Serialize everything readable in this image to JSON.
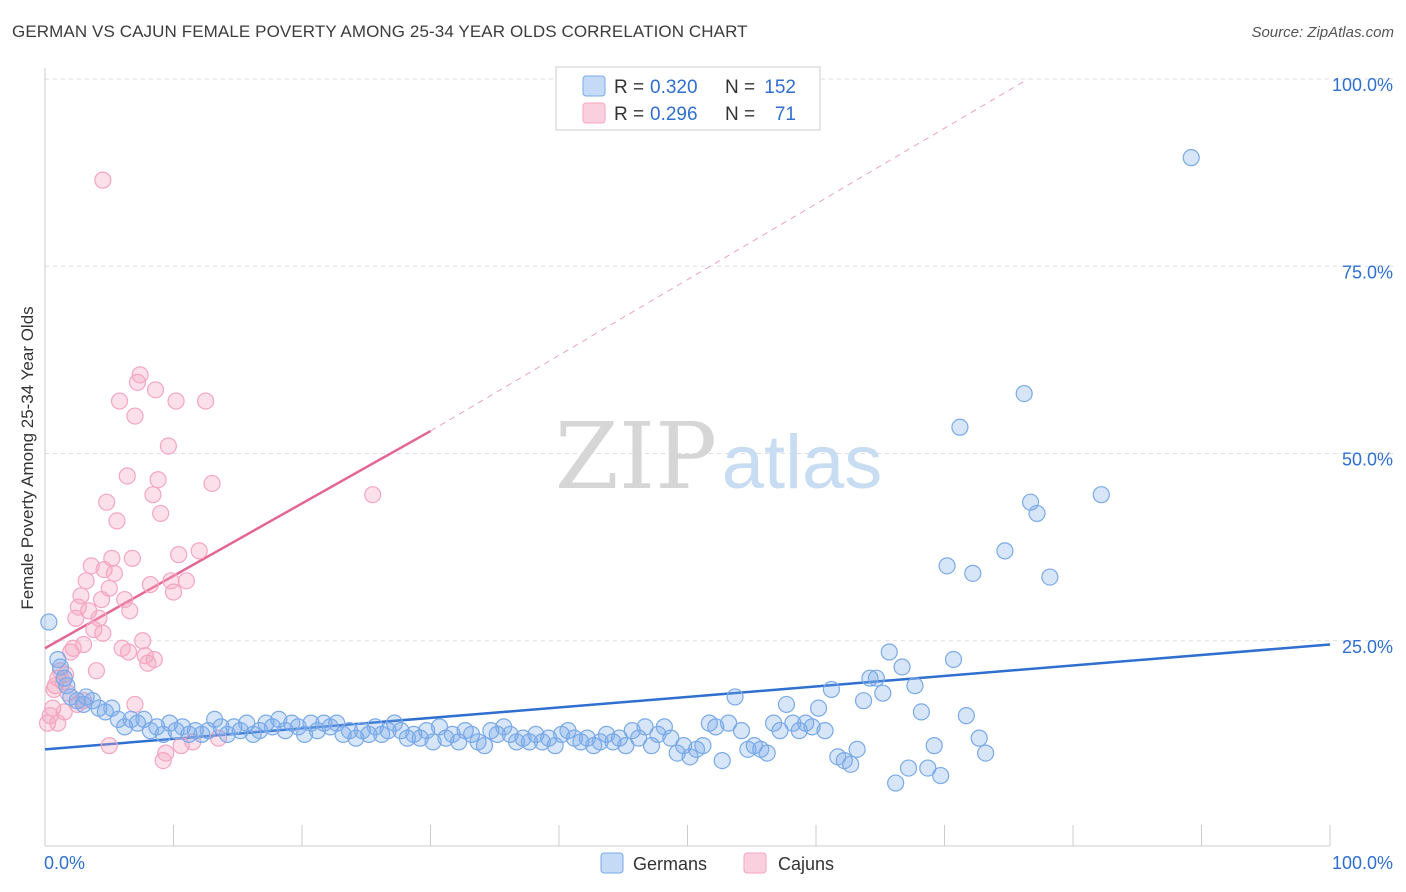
{
  "title": "GERMAN VS CAJUN FEMALE POVERTY AMONG 25-34 YEAR OLDS CORRELATION CHART",
  "source": "Source: ZipAtlas.com",
  "watermark": {
    "part1": "ZIP",
    "part2": "atlas"
  },
  "colors": {
    "germans": "#7aaae8",
    "germans_line": "#2f6fd0",
    "cajuns": "#f4a6bf",
    "cajuns_line": "#e2688f",
    "value_text": "#2f6fd0",
    "grid": "#dddddd"
  },
  "legend_top": [
    {
      "swatch": "germans",
      "r_label": "R =",
      "r_value": "0.320",
      "n_label": "N =",
      "n_value": "152"
    },
    {
      "swatch": "cajuns",
      "r_label": "R =",
      "r_value": "0.296",
      "n_label": "N =",
      "n_value": "71"
    }
  ],
  "legend_bottom": [
    {
      "swatch": "germans",
      "label": "Germans"
    },
    {
      "swatch": "cajuns",
      "label": "Cajuns"
    }
  ],
  "chart_data": {
    "type": "scatter",
    "ylabel": "Female Poverty Among 25-34 Year Olds",
    "xlabel": "",
    "xlim": [
      0,
      100
    ],
    "ylim": [
      0,
      100
    ],
    "x_tick_labels": [
      {
        "value": 0,
        "label": "0.0%"
      },
      {
        "value": 100,
        "label": "100.0%"
      }
    ],
    "y_tick_labels": [
      {
        "value": 25,
        "label": "25.0%"
      },
      {
        "value": 50,
        "label": "50.0%"
      },
      {
        "value": 75,
        "label": "75.0%"
      },
      {
        "value": 100,
        "label": "100.0%"
      }
    ],
    "grid": "horizontal dashed",
    "series": [
      {
        "name": "Germans",
        "trend": {
          "x0": 0,
          "y0": 10.5,
          "x1": 100,
          "y1": 24.5
        },
        "points": [
          [
            0.3,
            27.5
          ],
          [
            1.0,
            22.5
          ],
          [
            1.2,
            21.5
          ],
          [
            1.5,
            20.0
          ],
          [
            1.7,
            19.0
          ],
          [
            2.0,
            17.5
          ],
          [
            2.5,
            17.0
          ],
          [
            3.0,
            16.5
          ],
          [
            3.2,
            17.5
          ],
          [
            3.7,
            17.0
          ],
          [
            4.2,
            16.0
          ],
          [
            4.7,
            15.5
          ],
          [
            5.2,
            16.0
          ],
          [
            5.7,
            14.5
          ],
          [
            6.2,
            13.5
          ],
          [
            6.7,
            14.5
          ],
          [
            7.2,
            14.0
          ],
          [
            7.7,
            14.5
          ],
          [
            8.2,
            13.0
          ],
          [
            8.7,
            13.5
          ],
          [
            9.2,
            12.5
          ],
          [
            9.7,
            14.0
          ],
          [
            10.2,
            13.0
          ],
          [
            10.7,
            13.5
          ],
          [
            11.2,
            12.5
          ],
          [
            11.7,
            13.0
          ],
          [
            12.2,
            12.5
          ],
          [
            12.7,
            13.0
          ],
          [
            13.2,
            14.5
          ],
          [
            13.7,
            13.5
          ],
          [
            14.2,
            12.5
          ],
          [
            14.7,
            13.5
          ],
          [
            15.2,
            13.0
          ],
          [
            15.7,
            14.0
          ],
          [
            16.2,
            12.5
          ],
          [
            16.7,
            13.0
          ],
          [
            17.2,
            14.0
          ],
          [
            17.7,
            13.5
          ],
          [
            18.2,
            14.5
          ],
          [
            18.7,
            13.0
          ],
          [
            19.2,
            14.0
          ],
          [
            19.7,
            13.5
          ],
          [
            20.2,
            12.5
          ],
          [
            20.7,
            14.0
          ],
          [
            21.2,
            13.0
          ],
          [
            21.7,
            14.0
          ],
          [
            22.2,
            13.5
          ],
          [
            22.7,
            14.0
          ],
          [
            23.2,
            12.5
          ],
          [
            23.7,
            13.0
          ],
          [
            24.2,
            12.0
          ],
          [
            24.7,
            13.0
          ],
          [
            25.2,
            12.5
          ],
          [
            25.7,
            13.5
          ],
          [
            26.2,
            12.5
          ],
          [
            26.7,
            13.0
          ],
          [
            27.2,
            14.0
          ],
          [
            27.7,
            13.0
          ],
          [
            28.2,
            12.0
          ],
          [
            28.7,
            12.5
          ],
          [
            29.2,
            12.0
          ],
          [
            29.7,
            13.0
          ],
          [
            30.2,
            11.5
          ],
          [
            30.7,
            13.5
          ],
          [
            31.2,
            12.0
          ],
          [
            31.7,
            12.5
          ],
          [
            32.2,
            11.5
          ],
          [
            32.7,
            13.0
          ],
          [
            33.2,
            12.5
          ],
          [
            33.7,
            11.5
          ],
          [
            34.2,
            11.0
          ],
          [
            34.7,
            13.0
          ],
          [
            35.2,
            12.5
          ],
          [
            35.7,
            13.5
          ],
          [
            36.2,
            12.5
          ],
          [
            36.7,
            11.5
          ],
          [
            37.2,
            12.0
          ],
          [
            37.7,
            11.5
          ],
          [
            38.2,
            12.5
          ],
          [
            38.7,
            11.5
          ],
          [
            39.2,
            12.0
          ],
          [
            39.7,
            11.0
          ],
          [
            40.2,
            12.5
          ],
          [
            40.7,
            13.0
          ],
          [
            41.2,
            12.0
          ],
          [
            41.7,
            11.5
          ],
          [
            42.2,
            12.0
          ],
          [
            42.7,
            11.0
          ],
          [
            43.2,
            11.5
          ],
          [
            43.7,
            12.5
          ],
          [
            44.2,
            11.5
          ],
          [
            44.7,
            12.0
          ],
          [
            45.2,
            11.0
          ],
          [
            45.7,
            13.0
          ],
          [
            46.2,
            12.0
          ],
          [
            46.7,
            13.5
          ],
          [
            47.2,
            11.0
          ],
          [
            47.7,
            12.5
          ],
          [
            48.2,
            13.5
          ],
          [
            48.7,
            12.0
          ],
          [
            49.2,
            10.0
          ],
          [
            49.7,
            11.0
          ],
          [
            50.2,
            9.5
          ],
          [
            50.7,
            10.5
          ],
          [
            51.2,
            11.0
          ],
          [
            51.7,
            14.0
          ],
          [
            52.2,
            13.5
          ],
          [
            52.7,
            9.0
          ],
          [
            53.2,
            14.0
          ],
          [
            53.7,
            17.5
          ],
          [
            54.2,
            13.0
          ],
          [
            54.7,
            10.5
          ],
          [
            55.2,
            11.0
          ],
          [
            55.7,
            10.5
          ],
          [
            56.2,
            10.0
          ],
          [
            56.7,
            14.0
          ],
          [
            57.2,
            13.0
          ],
          [
            57.7,
            16.5
          ],
          [
            58.2,
            14.0
          ],
          [
            58.7,
            13.0
          ],
          [
            59.2,
            14.0
          ],
          [
            59.7,
            13.5
          ],
          [
            60.2,
            16.0
          ],
          [
            60.7,
            13.0
          ],
          [
            61.2,
            18.5
          ],
          [
            61.7,
            9.5
          ],
          [
            62.2,
            9.0
          ],
          [
            62.7,
            8.5
          ],
          [
            63.2,
            10.5
          ],
          [
            63.7,
            17.0
          ],
          [
            64.2,
            20.0
          ],
          [
            64.7,
            20.0
          ],
          [
            65.2,
            18.0
          ],
          [
            65.7,
            23.5
          ],
          [
            66.2,
            6.0
          ],
          [
            66.7,
            21.5
          ],
          [
            67.2,
            8.0
          ],
          [
            67.7,
            19.0
          ],
          [
            68.2,
            15.5
          ],
          [
            68.7,
            8.0
          ],
          [
            69.2,
            11.0
          ],
          [
            69.7,
            7.0
          ],
          [
            70.2,
            35.0
          ],
          [
            70.7,
            22.5
          ],
          [
            71.2,
            53.5
          ],
          [
            71.7,
            15.0
          ],
          [
            72.2,
            34.0
          ],
          [
            72.7,
            12.0
          ],
          [
            73.2,
            10.0
          ],
          [
            74.7,
            37.0
          ],
          [
            76.2,
            58.0
          ],
          [
            76.7,
            43.5
          ],
          [
            77.2,
            42.0
          ],
          [
            78.2,
            33.5
          ],
          [
            82.2,
            44.5
          ],
          [
            89.2,
            89.5
          ]
        ]
      },
      {
        "name": "Cajuns",
        "trend": {
          "x0": 0,
          "y0": 24.0,
          "x1": 30,
          "y1": 53.0
        },
        "trend_extension": {
          "x0": 30,
          "y0": 53.0,
          "x1": 76.5,
          "y1": 100.0
        },
        "points": [
          [
            0.2,
            14.0
          ],
          [
            0.4,
            15.0
          ],
          [
            0.6,
            16.0
          ],
          [
            0.7,
            18.5
          ],
          [
            0.8,
            19.0
          ],
          [
            1.0,
            20.0
          ],
          [
            1.2,
            21.0
          ],
          [
            1.4,
            19.5
          ],
          [
            1.6,
            20.5
          ],
          [
            1.8,
            18.0
          ],
          [
            2.0,
            23.5
          ],
          [
            2.2,
            24.0
          ],
          [
            2.4,
            28.0
          ],
          [
            2.6,
            29.5
          ],
          [
            2.8,
            31.0
          ],
          [
            3.0,
            24.5
          ],
          [
            3.2,
            33.0
          ],
          [
            3.4,
            29.0
          ],
          [
            3.6,
            35.0
          ],
          [
            3.8,
            26.5
          ],
          [
            4.0,
            21.0
          ],
          [
            4.2,
            28.0
          ],
          [
            4.4,
            30.5
          ],
          [
            4.6,
            34.5
          ],
          [
            4.8,
            43.5
          ],
          [
            5.0,
            32.0
          ],
          [
            5.2,
            36.0
          ],
          [
            5.4,
            34.0
          ],
          [
            5.6,
            41.0
          ],
          [
            5.8,
            57.0
          ],
          [
            6.0,
            24.0
          ],
          [
            6.2,
            30.5
          ],
          [
            6.4,
            47.0
          ],
          [
            6.6,
            29.0
          ],
          [
            6.8,
            36.0
          ],
          [
            7.0,
            55.0
          ],
          [
            7.2,
            59.5
          ],
          [
            7.4,
            60.5
          ],
          [
            7.6,
            25.0
          ],
          [
            7.8,
            23.0
          ],
          [
            8.0,
            22.0
          ],
          [
            8.2,
            32.5
          ],
          [
            8.4,
            44.5
          ],
          [
            8.6,
            58.5
          ],
          [
            8.8,
            46.5
          ],
          [
            9.0,
            42.0
          ],
          [
            9.2,
            9.0
          ],
          [
            9.4,
            10.0
          ],
          [
            9.6,
            51.0
          ],
          [
            9.8,
            33.0
          ],
          [
            10.0,
            31.5
          ],
          [
            10.2,
            57.0
          ],
          [
            10.4,
            36.5
          ],
          [
            10.6,
            11.0
          ],
          [
            11.0,
            33.0
          ],
          [
            11.5,
            11.5
          ],
          [
            12.0,
            37.0
          ],
          [
            12.5,
            57.0
          ],
          [
            13.0,
            46.0
          ],
          [
            13.5,
            12.0
          ],
          [
            1.0,
            14.0
          ],
          [
            1.5,
            15.5
          ],
          [
            2.5,
            16.5
          ],
          [
            3.0,
            17.0
          ],
          [
            4.5,
            26.0
          ],
          [
            5.0,
            11.0
          ],
          [
            6.5,
            23.5
          ],
          [
            7.0,
            16.5
          ],
          [
            8.5,
            22.5
          ],
          [
            25.5,
            44.5
          ],
          [
            4.5,
            86.5
          ]
        ]
      }
    ]
  }
}
